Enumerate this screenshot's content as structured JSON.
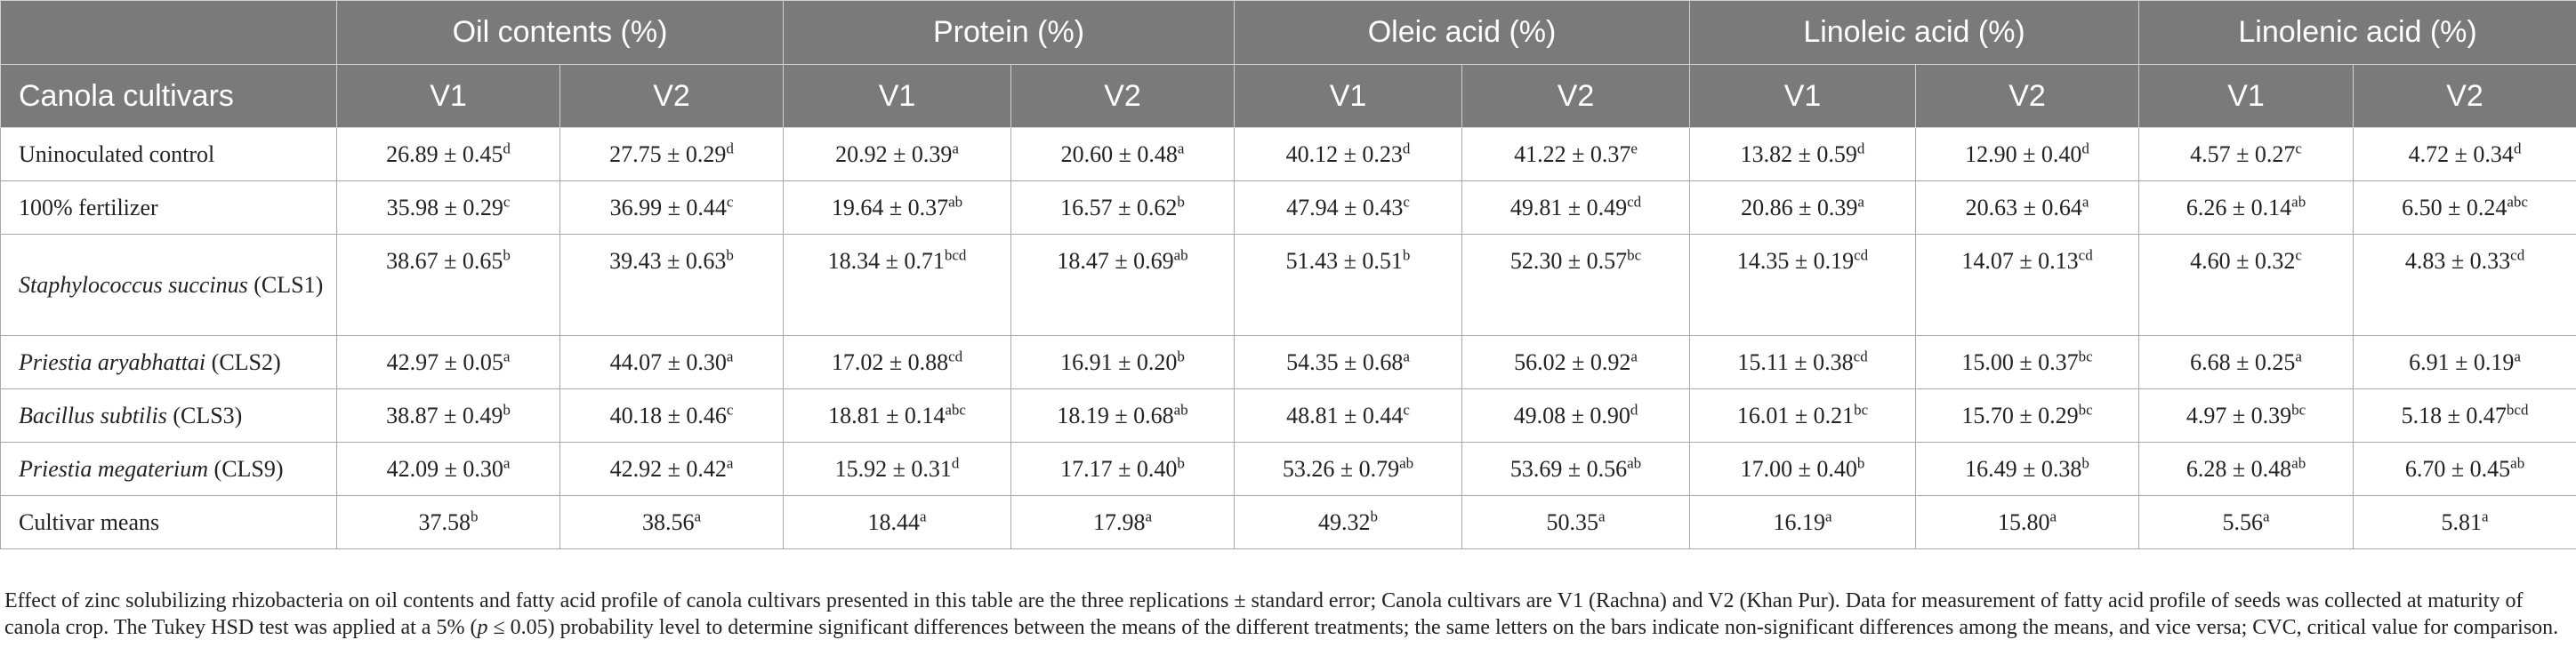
{
  "table": {
    "group_headers": [
      "",
      "Oil contents (%)",
      "Protein (%)",
      "Oleic acid (%)",
      "Linoleic acid (%)",
      "Linolenic acid (%)"
    ],
    "column_headers": [
      "Canola cultivars",
      "V1",
      "V2",
      "V1",
      "V2",
      "V1",
      "V2",
      "V1",
      "V2",
      "V1",
      "V2"
    ],
    "rows": [
      {
        "label": {
          "italic": "",
          "plain": "Uninoculated control"
        },
        "tall": false,
        "cells": [
          {
            "v": "26.89 ± 0.45",
            "s": "d"
          },
          {
            "v": "27.75 ± 0.29",
            "s": "d"
          },
          {
            "v": "20.92 ± 0.39",
            "s": "a"
          },
          {
            "v": "20.60 ± 0.48",
            "s": "a"
          },
          {
            "v": "40.12 ± 0.23",
            "s": "d"
          },
          {
            "v": "41.22 ± 0.37",
            "s": "e"
          },
          {
            "v": "13.82 ± 0.59",
            "s": "d"
          },
          {
            "v": "12.90 ± 0.40",
            "s": "d"
          },
          {
            "v": "4.57 ± 0.27",
            "s": "c"
          },
          {
            "v": "4.72 ± 0.34",
            "s": "d"
          }
        ]
      },
      {
        "label": {
          "italic": "",
          "plain": "100% fertilizer"
        },
        "tall": false,
        "cells": [
          {
            "v": "35.98 ± 0.29",
            "s": "c"
          },
          {
            "v": "36.99 ± 0.44",
            "s": "c"
          },
          {
            "v": "19.64 ± 0.37",
            "s": "ab"
          },
          {
            "v": "16.57 ± 0.62",
            "s": "b"
          },
          {
            "v": "47.94 ± 0.43",
            "s": "c"
          },
          {
            "v": "49.81 ± 0.49",
            "s": "cd"
          },
          {
            "v": "20.86 ± 0.39",
            "s": "a"
          },
          {
            "v": "20.63 ± 0.64",
            "s": "a"
          },
          {
            "v": "6.26 ± 0.14",
            "s": "ab"
          },
          {
            "v": "6.50 ± 0.24",
            "s": "abc"
          }
        ]
      },
      {
        "label": {
          "italic": "Staphylococcus succinus",
          "plain": "(CLS1)"
        },
        "tall": true,
        "cells": [
          {
            "v": "38.67 ± 0.65",
            "s": "b"
          },
          {
            "v": "39.43 ± 0.63",
            "s": "b"
          },
          {
            "v": "18.34 ± 0.71",
            "s": "bcd"
          },
          {
            "v": "18.47 ± 0.69",
            "s": "ab"
          },
          {
            "v": "51.43 ± 0.51",
            "s": "b"
          },
          {
            "v": "52.30 ± 0.57",
            "s": "bc"
          },
          {
            "v": "14.35 ± 0.19",
            "s": "cd"
          },
          {
            "v": "14.07 ± 0.13",
            "s": "cd"
          },
          {
            "v": "4.60 ± 0.32",
            "s": "c"
          },
          {
            "v": "4.83 ± 0.33",
            "s": "cd"
          }
        ]
      },
      {
        "label": {
          "italic": "Priestia aryabhattai",
          "plain": "(CLS2)"
        },
        "tall": false,
        "cells": [
          {
            "v": "42.97 ± 0.05",
            "s": "a"
          },
          {
            "v": "44.07 ± 0.30",
            "s": "a"
          },
          {
            "v": "17.02 ± 0.88",
            "s": "cd"
          },
          {
            "v": "16.91 ± 0.20",
            "s": "b"
          },
          {
            "v": "54.35 ± 0.68",
            "s": "a"
          },
          {
            "v": "56.02 ± 0.92",
            "s": "a"
          },
          {
            "v": "15.11 ± 0.38",
            "s": "cd"
          },
          {
            "v": "15.00 ± 0.37",
            "s": "bc"
          },
          {
            "v": "6.68 ± 0.25",
            "s": "a"
          },
          {
            "v": "6.91 ± 0.19",
            "s": "a"
          }
        ]
      },
      {
        "label": {
          "italic": "Bacillus subtilis",
          "plain": "(CLS3)"
        },
        "tall": false,
        "cells": [
          {
            "v": "38.87 ± 0.49",
            "s": "b"
          },
          {
            "v": "40.18 ± 0.46",
            "s": "c"
          },
          {
            "v": "18.81 ± 0.14",
            "s": "abc"
          },
          {
            "v": "18.19 ± 0.68",
            "s": "ab"
          },
          {
            "v": "48.81 ± 0.44",
            "s": "c"
          },
          {
            "v": "49.08 ± 0.90",
            "s": "d"
          },
          {
            "v": "16.01 ± 0.21",
            "s": "bc"
          },
          {
            "v": "15.70 ± 0.29",
            "s": "bc"
          },
          {
            "v": "4.97 ± 0.39",
            "s": "bc"
          },
          {
            "v": "5.18 ± 0.47",
            "s": "bcd"
          }
        ]
      },
      {
        "label": {
          "italic": "Priestia megaterium",
          "plain": "(CLS9)"
        },
        "tall": false,
        "cells": [
          {
            "v": "42.09 ± 0.30",
            "s": "a"
          },
          {
            "v": "42.92 ± 0.42",
            "s": "a"
          },
          {
            "v": "15.92 ± 0.31",
            "s": "d"
          },
          {
            "v": "17.17 ± 0.40",
            "s": "b"
          },
          {
            "v": "53.26 ± 0.79",
            "s": "ab"
          },
          {
            "v": "53.69 ± 0.56",
            "s": "ab"
          },
          {
            "v": "17.00 ± 0.40",
            "s": "b"
          },
          {
            "v": "16.49 ± 0.38",
            "s": "b"
          },
          {
            "v": "6.28 ± 0.48",
            "s": "ab"
          },
          {
            "v": "6.70 ± 0.45",
            "s": "ab"
          }
        ]
      },
      {
        "label": {
          "italic": "",
          "plain": "Cultivar means"
        },
        "tall": false,
        "cells": [
          {
            "v": "37.58",
            "s": "b"
          },
          {
            "v": "38.56",
            "s": "a"
          },
          {
            "v": "18.44",
            "s": "a"
          },
          {
            "v": "17.98",
            "s": "a"
          },
          {
            "v": "49.32",
            "s": "b"
          },
          {
            "v": "50.35",
            "s": "a"
          },
          {
            "v": "16.19",
            "s": "a"
          },
          {
            "v": "15.80",
            "s": "a"
          },
          {
            "v": "5.56",
            "s": "a"
          },
          {
            "v": "5.81",
            "s": "a"
          }
        ]
      }
    ]
  },
  "caption": {
    "part1": "Effect of zinc solubilizing rhizobacteria on oil contents and fatty acid profile of canola cultivars presented in this table are the three replications ± standard error; Canola cultivars are V1 (Rachna) and V2 (Khan Pur). Data for measurement of fatty acid profile of seeds was collected at maturity of canola crop. The Tukey HSD test was applied at a 5% (",
    "p_symbol": "p",
    "part2": " ≤ 0.05) probability level to determine significant differences between the means of the different treatments; the same letters on the bars indicate non-significant differences among the means, and vice versa; CVC, critical value for comparison."
  }
}
